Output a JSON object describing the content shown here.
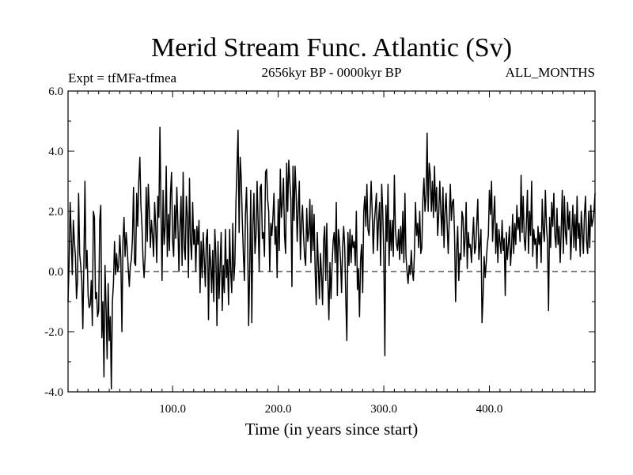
{
  "chart_data": {
    "type": "line",
    "title": "Merid Stream Func. Atlantic (Sv)",
    "subtitle_left": "Expt = tfMFa-tfmea",
    "subtitle_center": "2656kyr BP - 0000kyr BP",
    "subtitle_right": "ALL_MONTHS",
    "xlabel": "Time (in years since start)",
    "ylabel": "",
    "xlim": [
      1,
      500
    ],
    "ylim": [
      -4.0,
      6.0
    ],
    "x_ticks": [
      100,
      200,
      300,
      400
    ],
    "x_tick_labels": [
      "100.0",
      "200.0",
      "300.0",
      "400.0"
    ],
    "y_ticks": [
      -4,
      -2,
      0,
      2,
      4,
      6
    ],
    "y_tick_labels": [
      "-4.0",
      "-2.0",
      "0.0",
      "2.0",
      "4.0",
      "6.0"
    ],
    "reference_line": {
      "y": 0,
      "style": "dashed"
    },
    "series": [
      {
        "name": "Merid Stream Func. Atlantic",
        "x_start": 1,
        "x_step": 1,
        "values": [
          -1.0,
          0.3,
          2.3,
          1.2,
          -0.1,
          1.7,
          1.0,
          0.5,
          -0.9,
          -0.3,
          2.6,
          0.6,
          0.2,
          -0.3,
          -1.9,
          0.3,
          3.0,
          0.1,
          0.7,
          -0.8,
          -1.2,
          -1.1,
          -0.3,
          -1.8,
          2.0,
          1.8,
          -0.9,
          -0.7,
          -1.5,
          -1.3,
          1.7,
          2.2,
          -2.2,
          -1.0,
          -3.5,
          0.2,
          -1.2,
          -2.9,
          -0.4,
          -2.3,
          -1.5,
          -3.9,
          -1.0,
          -0.4,
          1.0,
          -0.1,
          0.6,
          0.0,
          0.2,
          1.2,
          0.4,
          -2.0,
          1.0,
          1.8,
          0.5,
          1.3,
          0.8,
          0.1,
          -0.5,
          0.2,
          0.4,
          1.1,
          2.8,
          0.3,
          0.2,
          2.6,
          1.5,
          3.0,
          3.8,
          2.2,
          1.5,
          0.4,
          -0.2,
          0.5,
          2.8,
          1.0,
          2.9,
          2.0,
          0.8,
          1.7,
          1.2,
          0.5,
          2.3,
          1.5,
          0.3,
          2.5,
          1.8,
          4.8,
          2.0,
          -0.3,
          2.7,
          0.9,
          1.5,
          3.5,
          0.5,
          1.9,
          0.7,
          2.6,
          3.3,
          1.0,
          0.5,
          2.2,
          1.1,
          2.8,
          1.6,
          0.0,
          1.5,
          2.5,
          0.2,
          3.3,
          0.8,
          0.4,
          2.5,
          1.8,
          -0.2,
          3.1,
          1.0,
          0.4,
          2.3,
          0.9,
          1.4,
          0.0,
          1.5,
          0.9,
          1.7,
          -0.7,
          1.0,
          -0.2,
          1.3,
          0.4,
          -0.5,
          1.1,
          1.4,
          -1.6,
          0.9,
          0.3,
          -0.7,
          0.7,
          -1.0,
          1.4,
          0.5,
          -1.8,
          1.0,
          -0.9,
          0.2,
          1.3,
          -1.3,
          0.2,
          -0.7,
          1.4,
          -0.2,
          0.4,
          -1.1,
          1.4,
          0.0,
          -0.7,
          1.6,
          -0.3,
          0.3,
          2.3,
          3.5,
          4.7,
          1.3,
          3.8,
          3.1,
          1.7,
          0.6,
          -0.3,
          1.9,
          2.8,
          1.2,
          -1.8,
          0.0,
          2.7,
          -1.7,
          1.5,
          2.6,
          0.6,
          1.2,
          3.0,
          1.6,
          0.0,
          2.8,
          2.9,
          1.1,
          1.3,
          0.5,
          3.3,
          3.4,
          2.4,
          2.0,
          0.0,
          1.6,
          1.2,
          1.8,
          2.6,
          0.9,
          1.5,
          -0.2,
          2.4,
          0.7,
          3.4,
          1.8,
          2.3,
          3.1,
          1.2,
          0.6,
          3.6,
          2.0,
          3.7,
          3.0,
          2.4,
          -0.5,
          3.5,
          1.7,
          3.5,
          2.6,
          1.0,
          2.1,
          3.0,
          0.4,
          1.6,
          2.2,
          1.2,
          0.5,
          0.2,
          2.1,
          1.0,
          1.3,
          2.4,
          0.3,
          2.2,
          0.7,
          1.9,
          0.0,
          -1.1,
          1.3,
          0.2,
          -0.9,
          0.6,
          -0.1,
          -1.1,
          1.0,
          1.5,
          -0.3,
          1.6,
          -0.3,
          -1.6,
          0.3,
          -0.9,
          0.2,
          1.0,
          1.3,
          0.3,
          2.3,
          -0.8,
          1.4,
          1.0,
          0.4,
          -0.7,
          0.8,
          1.5,
          0.8,
          -0.9,
          -2.3,
          1.3,
          0.2,
          1.4,
          0.3,
          1.2,
          0.8,
          1.0,
          0.2,
          2.0,
          -0.6,
          0.1,
          -1.5,
          0.4,
          0.9,
          -0.7,
          2.0,
          2.5,
          1.5,
          2.9,
          1.4,
          1.2,
          1.9,
          3.0,
          2.0,
          0.6,
          1.6,
          2.1,
          2.6,
          0.7,
          1.7,
          2.3,
          0.2,
          2.9,
          2.0,
          0.5,
          -2.8,
          2.2,
          1.0,
          2.9,
          0.2,
          1.7,
          0.7,
          1.7,
          0.5,
          3.2,
          1.4,
          0.9,
          0.7,
          1.4,
          0.4,
          1.5,
          0.6,
          2.0,
          0.3,
          2.6,
          0.5,
          0.0,
          -0.4,
          0.2,
          -0.1,
          0.7,
          0.0,
          -0.3,
          0.6,
          2.3,
          1.2,
          1.6,
          0.8,
          2.0,
          0.6,
          0.8,
          2.4,
          3.1,
          2.0,
          2.5,
          4.6,
          2.0,
          3.6,
          3.2,
          2.0,
          3.0,
          1.8,
          3.5,
          2.0,
          2.8,
          1.2,
          1.9,
          3.0,
          2.0,
          1.2,
          2.8,
          0.8,
          2.0,
          2.6,
          1.5,
          0.6,
          1.8,
          2.9,
          1.7,
          2.3,
          2.4,
          1.2,
          -1.0,
          0.7,
          1.5,
          -0.3,
          0.6,
          0.4,
          2.0,
          1.8,
          0.5,
          1.1,
          2.3,
          0.1,
          1.3,
          0.8,
          0.9,
          0.3,
          1.1,
          1.8,
          0.6,
          0.8,
          1.6,
          2.4,
          0.4,
          0.9,
          1.4,
          -1.7,
          -0.8,
          0.5,
          -0.2,
          0.3,
          0.9,
          1.2,
          2.7,
          1.9,
          3.0,
          1.0,
          1.8,
          2.5,
          0.6,
          1.6,
          0.3,
          1.4,
          1.0,
          0.6,
          1.7,
          0.7,
          1.1,
          -0.8,
          1.3,
          0.4,
          0.9,
          1.5,
          0.2,
          0.8,
          1.9,
          0.6,
          1.6,
          0.9,
          2.2,
          1.4,
          1.8,
          1.0,
          3.2,
          1.3,
          2.5,
          1.1,
          0.7,
          1.6,
          2.7,
          0.6,
          2.0,
          1.2,
          3.0,
          0.5,
          1.4,
          0.9,
          1.1,
          0.1,
          1.5,
          0.9,
          1.3,
          0.3,
          2.4,
          1.4,
          1.0,
          2.7,
          1.5,
          1.0,
          -1.3,
          1.8,
          0.8,
          2.3,
          1.5,
          2.6,
          1.2,
          0.8,
          2.1,
          0.9,
          1.5,
          0.3,
          1.4,
          2.7,
          0.6,
          2.5,
          1.3,
          0.9,
          2.3,
          1.4,
          2.0,
          0.4,
          1.3,
          2.2,
          0.8,
          1.9,
          0.7,
          2.5,
          1.1,
          1.6,
          0.5,
          2.0,
          1.3,
          0.6,
          1.9,
          2.5,
          1.0,
          0.6,
          2.0,
          0.8,
          2.2,
          1.5,
          1.7,
          2.0,
          2.6
        ]
      }
    ]
  }
}
